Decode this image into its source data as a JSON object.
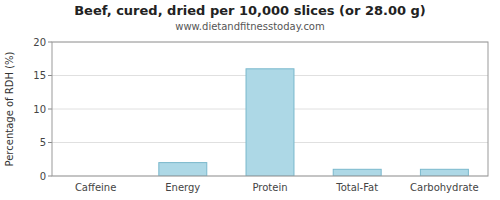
{
  "chart_data": {
    "type": "bar",
    "title": "Beef, cured, dried per 10,000 slices (or 28.00 g)",
    "subtitle": "www.dietandfitnesstoday.com",
    "categories": [
      "Caffeine",
      "Energy",
      "Protein",
      "Total-Fat",
      "Carbohydrate"
    ],
    "values": [
      0,
      2,
      16,
      1,
      1
    ],
    "color": "#add8e6",
    "ylim": [
      0,
      20
    ],
    "yticks": [
      0,
      5,
      10,
      15,
      20
    ],
    "ylabel": "Percentage of RDH (%)",
    "grid": true
  }
}
